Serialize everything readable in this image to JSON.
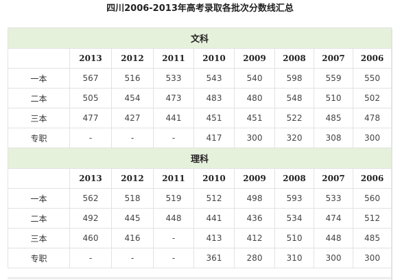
{
  "title": "四川2006-2013年高考录取各批次分数线汇总",
  "years": [
    "2013",
    "2012",
    "2011",
    "2010",
    "2009",
    "2008",
    "2007",
    "2006"
  ],
  "sections": [
    {
      "name": "文科",
      "rows": [
        {
          "label": "一本",
          "values": [
            "567",
            "516",
            "533",
            "543",
            "540",
            "598",
            "559",
            "550"
          ]
        },
        {
          "label": "二本",
          "values": [
            "505",
            "454",
            "473",
            "483",
            "480",
            "548",
            "510",
            "502"
          ]
        },
        {
          "label": "三本",
          "values": [
            "477",
            "427",
            "441",
            "451",
            "451",
            "522",
            "485",
            "478"
          ]
        },
        {
          "label": "专职",
          "values": [
            "-",
            "-",
            "-",
            "417",
            "300",
            "320",
            "308",
            "300"
          ]
        }
      ]
    },
    {
      "name": "理科",
      "rows": [
        {
          "label": "一本",
          "values": [
            "562",
            "518",
            "519",
            "512",
            "498",
            "593",
            "533",
            "560"
          ]
        },
        {
          "label": "二本",
          "values": [
            "492",
            "445",
            "448",
            "441",
            "436",
            "534",
            "474",
            "512"
          ]
        },
        {
          "label": "三本",
          "values": [
            "460",
            "416",
            "-",
            "413",
            "412",
            "510",
            "448",
            "485"
          ]
        },
        {
          "label": "专职",
          "values": [
            "-",
            "-",
            "-",
            "361",
            "280",
            "310",
            "300",
            "300"
          ]
        }
      ]
    }
  ]
}
